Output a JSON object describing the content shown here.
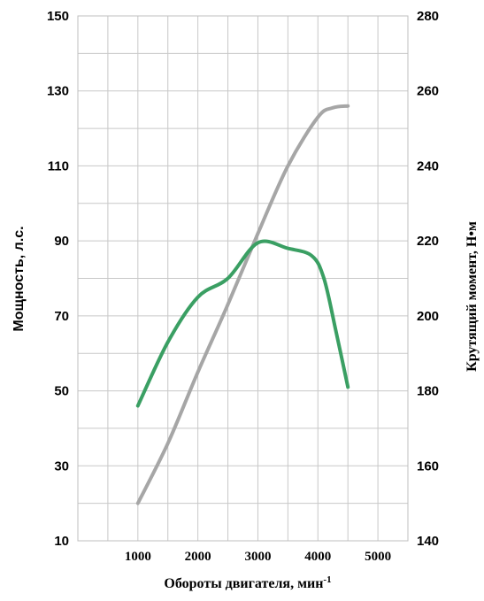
{
  "chart_data": {
    "type": "line",
    "xlabel": "Обороты двигателя, мин",
    "xlabel_sup": "-1",
    "ylabel_left": "Мощность, л.с.",
    "ylabel_right": "Крутящий момент, Н•м",
    "x_ticks": [
      "1000",
      "2000",
      "3000",
      "4000",
      "5000"
    ],
    "y_left_ticks": [
      "10",
      "30",
      "50",
      "70",
      "90",
      "110",
      "130",
      "150"
    ],
    "y_right_ticks": [
      "140",
      "160",
      "180",
      "200",
      "220",
      "240",
      "260",
      "280"
    ],
    "xlim": [
      0,
      5500
    ],
    "ylim_left": [
      10,
      150
    ],
    "ylim_right": [
      140,
      280
    ],
    "grid": true,
    "series": [
      {
        "axis": "left",
        "color": "#a6a6a6",
        "x": [
          1000,
          1500,
          2000,
          2500,
          3000,
          3500,
          4000,
          4250,
          4500
        ],
        "values": [
          20,
          36,
          55,
          73,
          92,
          110,
          123,
          125.5,
          126
        ]
      },
      {
        "axis": "right",
        "color": "#3a9f63",
        "x": [
          1000,
          1500,
          2000,
          2500,
          3000,
          3500,
          3900,
          4100,
          4300,
          4500
        ],
        "values": [
          176,
          193,
          205,
          210,
          219.5,
          218,
          216,
          210,
          196,
          181
        ]
      }
    ]
  }
}
